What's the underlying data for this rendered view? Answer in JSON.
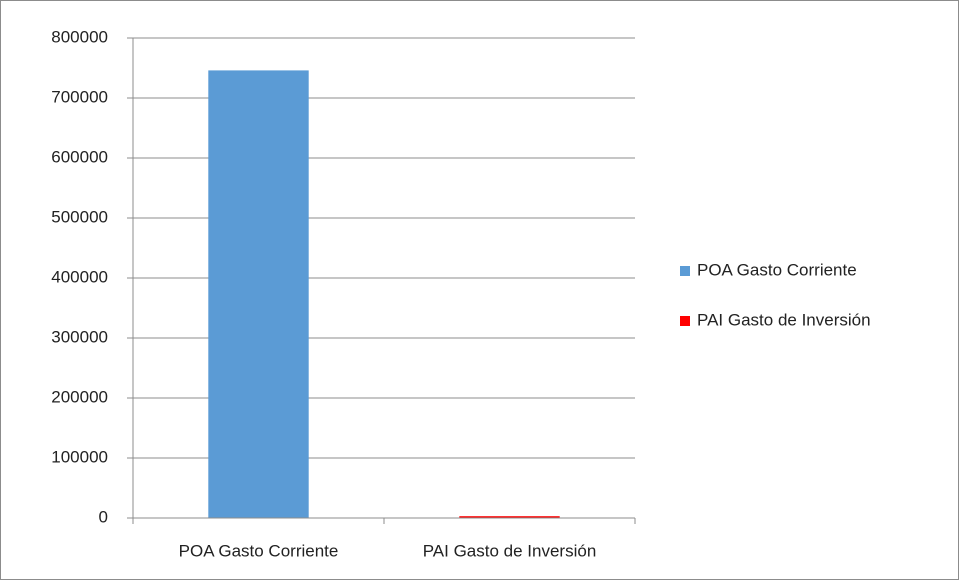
{
  "chart_data": {
    "type": "bar",
    "categories": [
      "POA Gasto Corriente",
      "PAI Gasto de Inversión"
    ],
    "series": [
      {
        "name": "POA Gasto Corriente",
        "color": "#5b9bd5",
        "values": [
          746000,
          null
        ]
      },
      {
        "name": "PAI Gasto de Inversión",
        "color": "#ff0000",
        "values": [
          null,
          3000
        ]
      }
    ],
    "ylim": [
      0,
      800000
    ],
    "yticks": [
      0,
      100000,
      200000,
      300000,
      400000,
      500000,
      600000,
      700000,
      800000
    ],
    "grid": true,
    "legend": "right"
  }
}
